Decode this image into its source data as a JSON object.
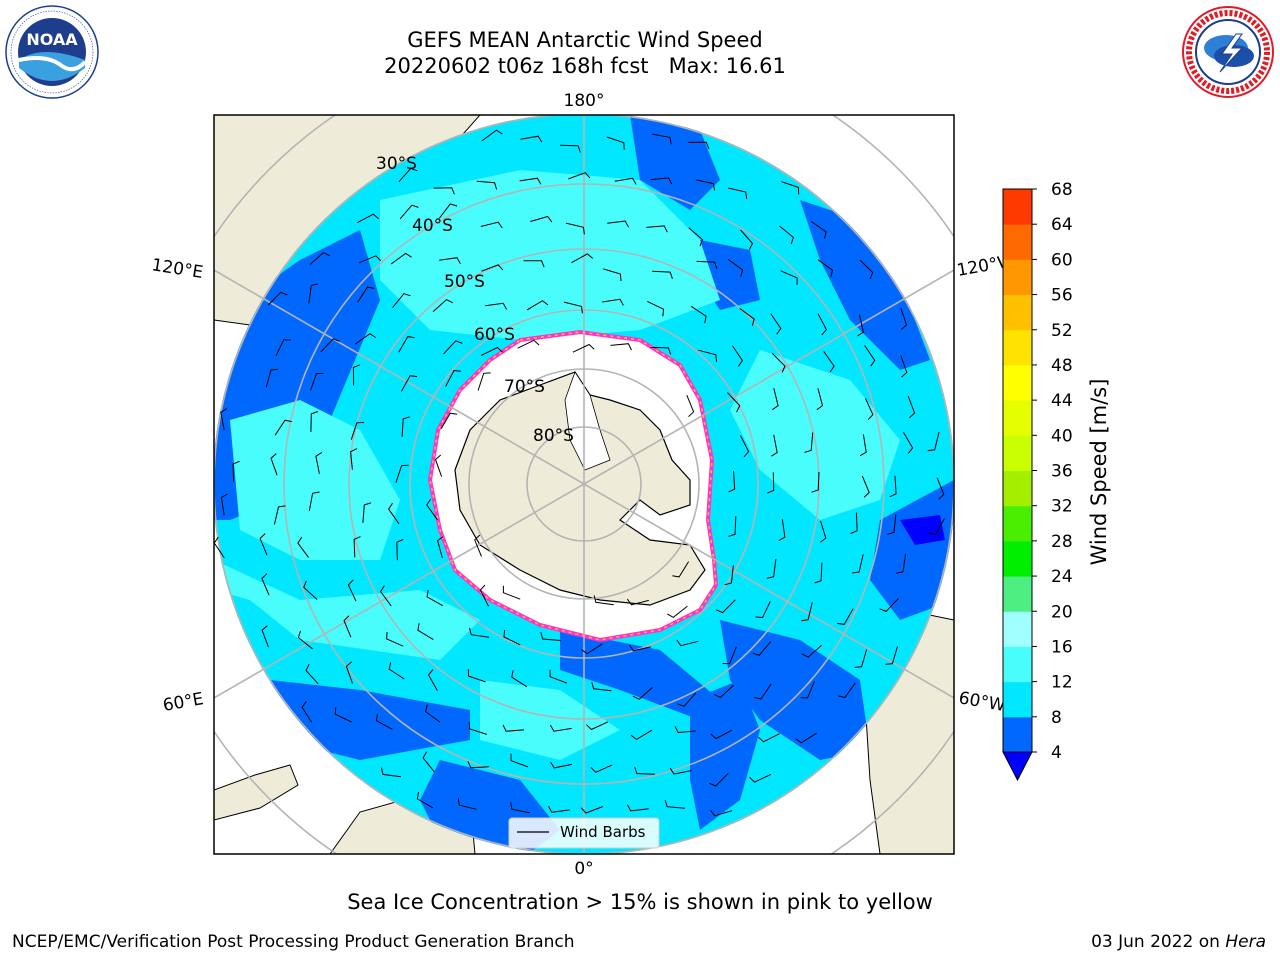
{
  "title": {
    "line1": "GEFS MEAN Antarctic Wind Speed",
    "line2": "20220602 t06z 168h fcst   Max: 16.61"
  },
  "logos": {
    "noaa_text": "NOAA",
    "noaa_ring_text": "NATIONAL OCEANIC AND ATMOSPHERIC ADMINISTRATION · U.S. DEPARTMENT OF COMMERCE",
    "nws_ring_text": "NATIONAL WEATHER SERVICE"
  },
  "map": {
    "projection": "south-polar-stereographic",
    "longitude_labels": {
      "top": "180°",
      "bottom": "0°",
      "upper_left": "120°E",
      "upper_right": "120°W",
      "lower_left": "60°E",
      "lower_right": "60°W"
    },
    "latitude_labels": [
      "30°S",
      "40°S",
      "50°S",
      "60°S",
      "70°S",
      "80°S"
    ],
    "legend_label": "Wind Barbs",
    "colors": {
      "land": "#eeecd9",
      "sea_ice": "#ffffff",
      "ice_edge_pink": "#ff33cc",
      "ice_edge_orange": "#ffbb33",
      "grid": "#b4b4b4"
    }
  },
  "colorbar": {
    "label": "Wind Speed [m/s]",
    "ticks": [
      "4",
      "8",
      "12",
      "16",
      "20",
      "24",
      "28",
      "32",
      "36",
      "40",
      "44",
      "48",
      "52",
      "56",
      "60",
      "64",
      "68"
    ],
    "colors": [
      "#0068ff",
      "#00e7ff",
      "#4afdfd",
      "#a0ffff",
      "#4fee83",
      "#00ee00",
      "#49ee00",
      "#a4ee00",
      "#c9ff00",
      "#e5ff00",
      "#ffff00",
      "#ffe300",
      "#ffc000",
      "#ff9800",
      "#ff6a00",
      "#ff3a00",
      "#ff0000"
    ],
    "extend_color": "#0000ff"
  },
  "caption": "Sea Ice Concentration > 15% is shown in pink to yellow",
  "footer": {
    "left": "NCEP/EMC/Verification Post Processing Product Generation Branch",
    "date": "03 Jun 2022 on ",
    "host": "Hera"
  }
}
